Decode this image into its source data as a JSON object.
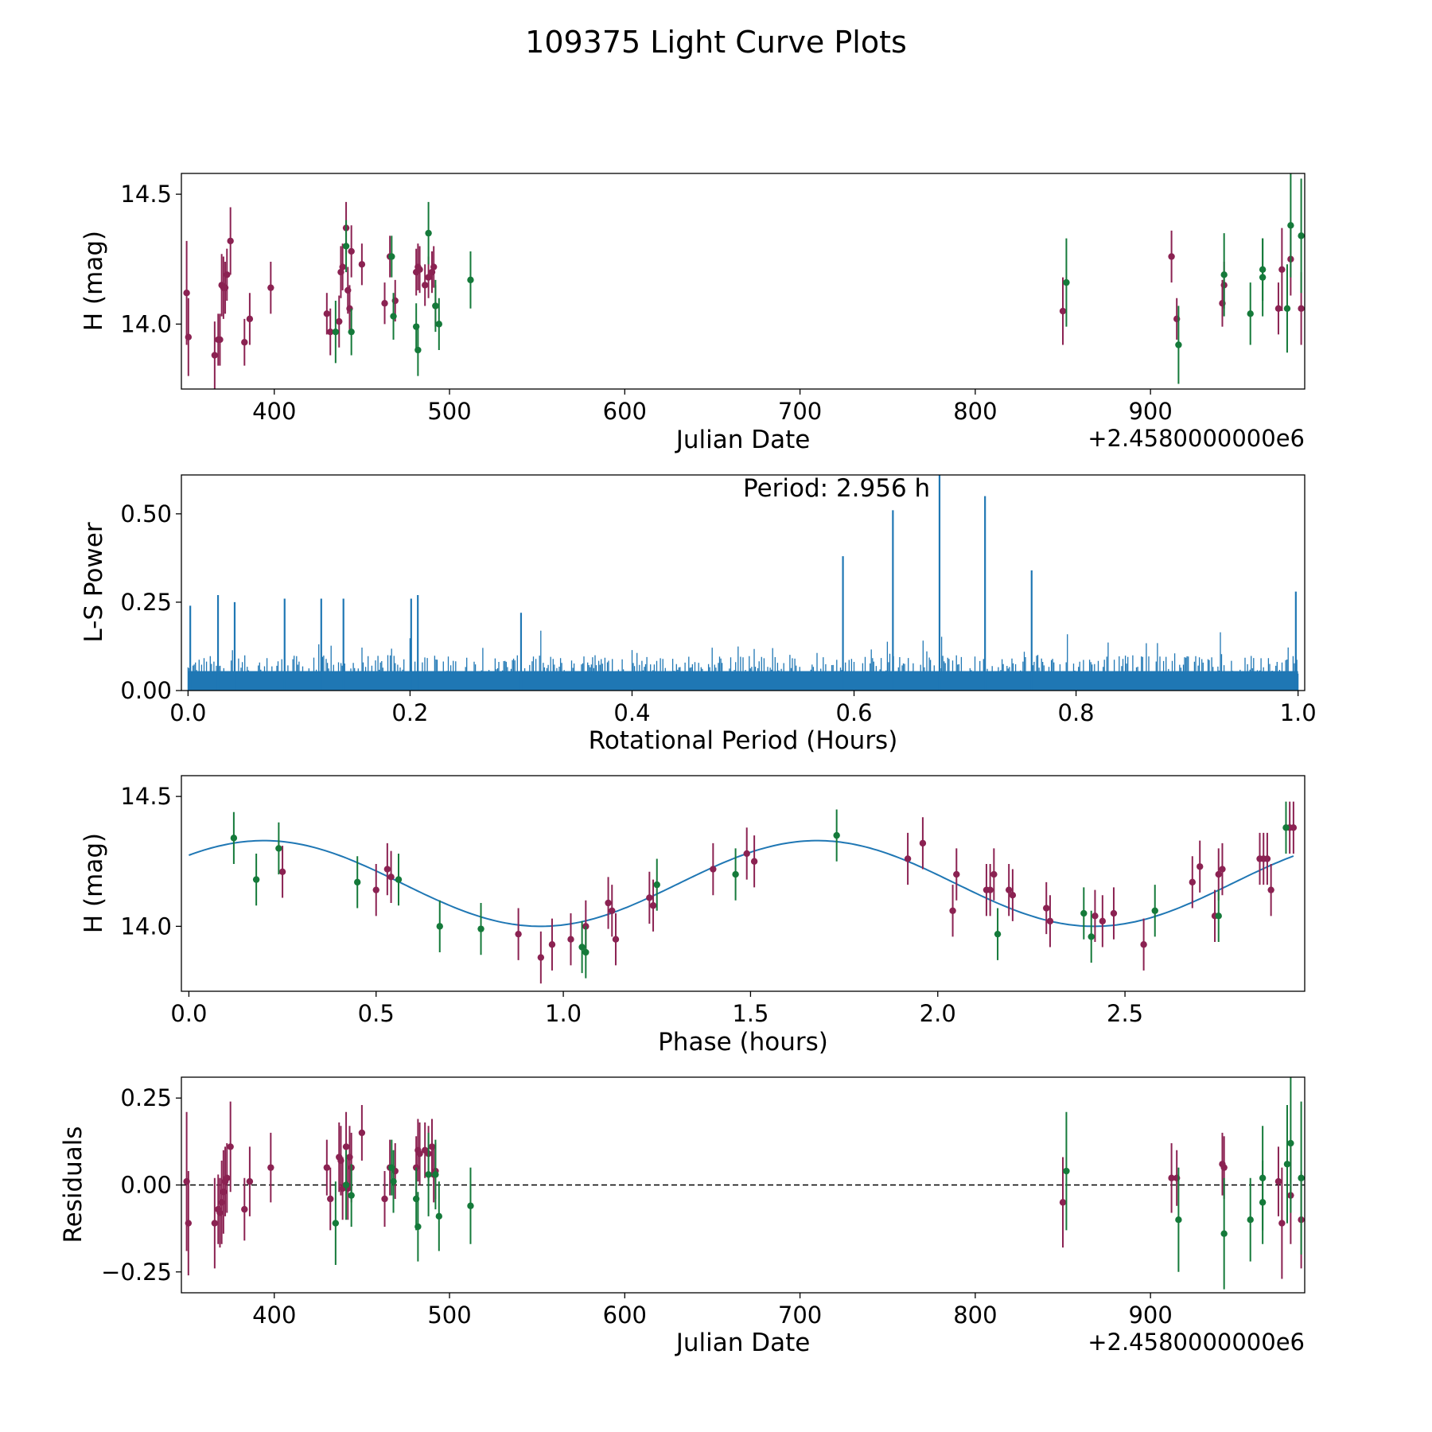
{
  "figure_title": "109375 Light Curve Plots",
  "colors": {
    "purple": "#8B2252",
    "green": "#157A3A",
    "blue": "#1f77b4",
    "black": "#000000"
  },
  "chart_data": [
    {
      "name": "light_curve",
      "type": "scatter",
      "xlabel": "Julian Date",
      "ylabel": "H (mag)",
      "offset_text": "+2.4580000000e6",
      "xlim": [
        347,
        988
      ],
      "ylim": [
        13.75,
        14.58
      ],
      "xticks": [
        400,
        500,
        600,
        700,
        800,
        900
      ],
      "xtick_labels": [
        "400",
        "500",
        "600",
        "700",
        "800",
        "900"
      ],
      "yticks": [
        14.0,
        14.5
      ],
      "ytick_labels": [
        "14.0",
        "14.5"
      ],
      "series": [
        {
          "name": "purple",
          "color": "#8B2252",
          "x": [
            350,
            351,
            366,
            368,
            369,
            370,
            371,
            372,
            373,
            375,
            383,
            386,
            398,
            430,
            432,
            437,
            438,
            439,
            441,
            442,
            443,
            444,
            450,
            463,
            466,
            469,
            481,
            482,
            483,
            486,
            488,
            490,
            491,
            492,
            850,
            912,
            915,
            941,
            942,
            973,
            975,
            980,
            986
          ],
          "y": [
            14.12,
            13.95,
            13.88,
            13.94,
            13.94,
            14.15,
            14.14,
            14.14,
            14.19,
            14.32,
            13.93,
            14.02,
            14.14,
            14.04,
            13.97,
            14.01,
            14.2,
            14.22,
            14.37,
            14.13,
            14.06,
            14.28,
            14.23,
            14.08,
            14.26,
            14.09,
            14.2,
            14.22,
            14.21,
            14.15,
            14.18,
            14.2,
            14.22,
            14.07,
            14.05,
            14.26,
            14.02,
            14.08,
            14.15,
            14.06,
            14.21,
            14.25,
            14.06
          ],
          "err": [
            0.2,
            0.15,
            0.13,
            0.1,
            0.1,
            0.12,
            0.12,
            0.1,
            0.1,
            0.13,
            0.09,
            0.1,
            0.1,
            0.08,
            0.09,
            0.1,
            0.1,
            0.09,
            0.1,
            0.09,
            0.09,
            0.1,
            0.08,
            0.08,
            0.08,
            0.08,
            0.09,
            0.09,
            0.09,
            0.08,
            0.08,
            0.08,
            0.08,
            0.08,
            0.13,
            0.1,
            0.08,
            0.09,
            0.09,
            0.1,
            0.16,
            0.14,
            0.14
          ]
        },
        {
          "name": "green",
          "color": "#157A3A",
          "x": [
            435,
            441,
            444,
            467,
            468,
            481,
            482,
            488,
            492,
            494,
            512,
            852,
            916,
            942,
            957,
            964,
            964,
            978,
            980,
            986
          ],
          "y": [
            13.97,
            14.3,
            13.97,
            14.26,
            14.03,
            13.99,
            13.9,
            14.35,
            14.07,
            14.0,
            14.17,
            14.16,
            13.92,
            14.19,
            14.04,
            14.18,
            14.21,
            14.06,
            14.38,
            14.34
          ],
          "err": [
            0.12,
            0.1,
            0.09,
            0.08,
            0.09,
            0.09,
            0.1,
            0.12,
            0.1,
            0.1,
            0.11,
            0.17,
            0.15,
            0.16,
            0.12,
            0.15,
            0.12,
            0.17,
            0.2,
            0.22
          ]
        }
      ]
    },
    {
      "name": "periodogram",
      "type": "line",
      "xlabel": "Rotational Period (Hours)",
      "ylabel": "L-S Power",
      "annotation": "Period: 2.956 h",
      "xlim": [
        -0.006,
        1.006
      ],
      "ylim": [
        0.0,
        0.61
      ],
      "xticks": [
        0.0,
        0.2,
        0.4,
        0.6,
        0.8,
        1.0
      ],
      "xtick_labels": [
        "0.0",
        "0.2",
        "0.4",
        "0.6",
        "0.8",
        "1.0"
      ],
      "yticks": [
        0.0,
        0.25,
        0.5
      ],
      "ytick_labels": [
        "0.00",
        "0.25",
        "0.50"
      ],
      "noise_floor": 0.1,
      "noise_count": 900,
      "peaks": {
        "x": [
          0.002,
          0.027,
          0.042,
          0.087,
          0.12,
          0.14,
          0.201,
          0.207,
          0.3,
          0.59,
          0.635,
          0.677,
          0.718,
          0.76,
          0.998
        ],
        "y": [
          0.24,
          0.27,
          0.25,
          0.26,
          0.26,
          0.26,
          0.26,
          0.27,
          0.22,
          0.38,
          0.51,
          0.61,
          0.55,
          0.34,
          0.28
        ]
      }
    },
    {
      "name": "phase_folded",
      "type": "scatter",
      "xlabel": "Phase (hours)",
      "ylabel": "H (mag)",
      "xlim": [
        -0.02,
        2.98
      ],
      "ylim": [
        13.75,
        14.58
      ],
      "xticks": [
        0.0,
        0.5,
        1.0,
        1.5,
        2.0,
        2.5
      ],
      "xtick_labels": [
        "0.0",
        "0.5",
        "1.0",
        "1.5",
        "2.0",
        "2.5"
      ],
      "yticks": [
        14.0,
        14.5
      ],
      "ytick_labels": [
        "14.0",
        "14.5"
      ],
      "model": {
        "mean": 14.165,
        "amplitude": 0.165,
        "period_fold": 1.478,
        "phase_peak": 0.2
      },
      "series": [
        {
          "name": "purple",
          "color": "#8B2252",
          "x": [
            0.25,
            0.5,
            0.53,
            0.54,
            0.88,
            0.94,
            0.97,
            1.02,
            1.06,
            1.12,
            1.13,
            1.14,
            1.23,
            1.24,
            1.4,
            1.49,
            1.51,
            1.92,
            1.96,
            2.04,
            2.05,
            2.13,
            2.14,
            2.15,
            2.19,
            2.2,
            2.29,
            2.3,
            2.42,
            2.44,
            2.47,
            2.55,
            2.68,
            2.7,
            2.74,
            2.75,
            2.76,
            2.86,
            2.87,
            2.88,
            2.89,
            2.94,
            2.95
          ],
          "y": [
            14.21,
            14.14,
            14.22,
            14.19,
            13.97,
            13.88,
            13.93,
            13.95,
            14.0,
            14.09,
            14.06,
            13.95,
            14.11,
            14.08,
            14.22,
            14.28,
            14.25,
            14.26,
            14.32,
            14.06,
            14.2,
            14.14,
            14.14,
            14.2,
            14.14,
            14.12,
            14.07,
            14.02,
            14.04,
            14.02,
            14.05,
            13.93,
            14.17,
            14.23,
            14.04,
            14.2,
            14.22,
            14.26,
            14.26,
            14.26,
            14.14,
            14.38,
            14.38
          ]
        },
        {
          "name": "green",
          "color": "#157A3A",
          "x": [
            0.12,
            0.18,
            0.24,
            0.45,
            0.56,
            0.67,
            0.78,
            1.05,
            1.06,
            1.25,
            1.46,
            1.73,
            2.16,
            2.39,
            2.41,
            2.58,
            2.75,
            2.93
          ],
          "y": [
            14.34,
            14.18,
            14.3,
            14.17,
            14.18,
            14.0,
            13.99,
            13.92,
            13.9,
            14.16,
            14.2,
            14.35,
            13.97,
            14.05,
            13.96,
            14.06,
            14.04,
            14.38
          ]
        }
      ]
    },
    {
      "name": "residuals",
      "type": "scatter",
      "xlabel": "Julian Date",
      "ylabel": "Residuals",
      "offset_text": "+2.4580000000e6",
      "xlim": [
        347,
        988
      ],
      "ylim": [
        -0.31,
        0.31
      ],
      "xticks": [
        400,
        500,
        600,
        700,
        800,
        900
      ],
      "xtick_labels": [
        "400",
        "500",
        "600",
        "700",
        "800",
        "900"
      ],
      "yticks": [
        -0.25,
        0.0,
        0.25
      ],
      "ytick_labels": [
        "−0.25",
        "0.00",
        "0.25"
      ],
      "zero_line": 0.0,
      "series": [
        {
          "name": "purple",
          "color": "#8B2252",
          "x": [
            350,
            351,
            366,
            368,
            369,
            370,
            371,
            372,
            373,
            375,
            383,
            386,
            398,
            430,
            432,
            437,
            438,
            439,
            441,
            442,
            443,
            444,
            450,
            463,
            466,
            469,
            481,
            482,
            483,
            486,
            488,
            490,
            491,
            492,
            850,
            912,
            915,
            941,
            942,
            973,
            975,
            980,
            986
          ],
          "y": [
            0.01,
            -0.11,
            -0.11,
            -0.07,
            -0.08,
            -0.05,
            -0.02,
            0.01,
            0.02,
            0.11,
            -0.07,
            0.01,
            0.05,
            0.05,
            -0.04,
            0.08,
            0.07,
            -0.01,
            0.11,
            -0.01,
            0.08,
            0.05,
            0.15,
            -0.04,
            0.05,
            0.04,
            0.05,
            0.1,
            0.09,
            0.1,
            0.09,
            0.11,
            0.03,
            0.04,
            -0.05,
            0.02,
            0.02,
            0.06,
            0.05,
            0.01,
            -0.11,
            -0.03,
            -0.1
          ],
          "err": [
            0.2,
            0.15,
            0.13,
            0.1,
            0.1,
            0.12,
            0.12,
            0.1,
            0.1,
            0.13,
            0.09,
            0.1,
            0.1,
            0.08,
            0.09,
            0.1,
            0.1,
            0.09,
            0.1,
            0.09,
            0.09,
            0.1,
            0.08,
            0.08,
            0.08,
            0.08,
            0.09,
            0.09,
            0.09,
            0.08,
            0.08,
            0.08,
            0.08,
            0.08,
            0.13,
            0.1,
            0.08,
            0.09,
            0.09,
            0.1,
            0.16,
            0.14,
            0.14
          ]
        },
        {
          "name": "green",
          "color": "#157A3A",
          "x": [
            435,
            441,
            444,
            467,
            468,
            481,
            482,
            488,
            492,
            494,
            512,
            852,
            916,
            942,
            957,
            964,
            964,
            978,
            980,
            986
          ],
          "y": [
            -0.11,
            0.0,
            -0.03,
            0.05,
            0.01,
            -0.04,
            -0.12,
            0.03,
            0.03,
            -0.09,
            -0.06,
            0.04,
            -0.1,
            -0.14,
            -0.1,
            0.02,
            -0.05,
            0.06,
            0.12,
            0.02
          ],
          "err": [
            0.12,
            0.1,
            0.09,
            0.08,
            0.09,
            0.09,
            0.1,
            0.12,
            0.1,
            0.1,
            0.11,
            0.17,
            0.15,
            0.16,
            0.12,
            0.15,
            0.12,
            0.17,
            0.2,
            0.22
          ]
        }
      ]
    }
  ]
}
